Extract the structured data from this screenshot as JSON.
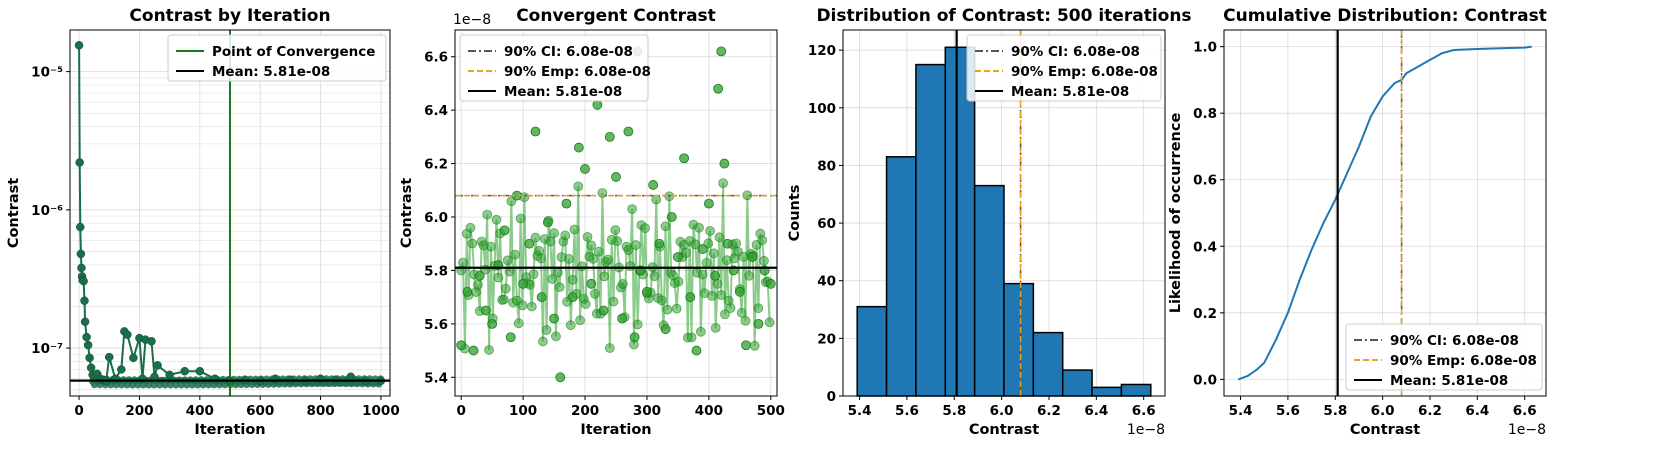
{
  "chart_data": [
    {
      "type": "scatter",
      "title": "Contrast by Iteration",
      "xlabel": "Iteration",
      "ylabel": "Contrast",
      "yscale": "log",
      "xlim": [
        -30,
        1030
      ],
      "ylim": [
        4.5e-08,
        2e-05
      ],
      "xticks": [
        0,
        200,
        400,
        600,
        800,
        1000
      ],
      "xtick_labels": [
        "0",
        "200",
        "400",
        "600",
        "800",
        "1000"
      ],
      "yticks": [
        1e-07,
        1e-06,
        1e-05
      ],
      "ytick_labels": [
        "10⁻⁷",
        "10⁻⁶",
        "10⁻⁵"
      ],
      "series": [
        {
          "name": "Contrast",
          "color": "#1a6e4a",
          "x": [
            0,
            2,
            4,
            6,
            8,
            10,
            12,
            15,
            18,
            20,
            25,
            30,
            35,
            40,
            45,
            50,
            60,
            70,
            80,
            90,
            100,
            120,
            140,
            150,
            160,
            180,
            200,
            210,
            220,
            240,
            250,
            260,
            300,
            350,
            400,
            450,
            500,
            550,
            600,
            650,
            700,
            750,
            800,
            850,
            900,
            950,
            1000
          ],
          "y": [
            1.55e-05,
            2.2e-06,
            7.5e-07,
            4.8e-07,
            3.8e-07,
            3.3e-07,
            3.1e-07,
            3.05e-07,
            2.2e-07,
            1.55e-07,
            1.2e-07,
            1.05e-07,
            8.5e-08,
            7.2e-08,
            6.4e-08,
            6.1e-08,
            6.5e-08,
            6e-08,
            5.9e-08,
            5.8e-08,
            8.6e-08,
            6e-08,
            7e-08,
            1.32e-07,
            1.25e-07,
            8.5e-08,
            1.18e-07,
            6e-08,
            1.15e-07,
            1.12e-07,
            6.2e-08,
            7.5e-08,
            6.4e-08,
            6.8e-08,
            6.8e-08,
            6e-08,
            5.8e-08,
            5.9e-08,
            5.8e-08,
            6e-08,
            5.9e-08,
            5.8e-08,
            6e-08,
            5.9e-08,
            6.2e-08,
            5.8e-08,
            5.8e-08
          ]
        }
      ],
      "legend": [
        {
          "label": "Point of Convergence",
          "color": "#1a7a1a",
          "style": "solid"
        },
        {
          "label": "Mean: 5.81e-08",
          "color": "#000000",
          "style": "solid"
        }
      ],
      "vline": {
        "x": 500,
        "color": "#1a7a1a"
      },
      "hline": {
        "y": 5.81e-08,
        "color": "#000000"
      },
      "legend_loc": "upper right"
    },
    {
      "type": "line",
      "title": "Convergent Contrast",
      "xlabel": "Iteration",
      "ylabel": "Contrast",
      "offset_text": "1e−8",
      "xlim": [
        -10,
        510
      ],
      "ylim": [
        5.33,
        6.7
      ],
      "xticks": [
        0,
        100,
        200,
        300,
        400,
        500
      ],
      "xtick_labels": [
        "0",
        "100",
        "200",
        "300",
        "400",
        "500"
      ],
      "yticks": [
        5.4,
        5.6,
        5.8,
        6.0,
        6.2,
        6.4,
        6.6
      ],
      "ytick_labels": [
        "5.4",
        "5.6",
        "5.8",
        "6.0",
        "6.2",
        "6.4",
        "6.6"
      ],
      "series": [
        {
          "name": "Contrast",
          "color": "#2ca02c",
          "x": [
            0,
            10,
            20,
            30,
            40,
            50,
            60,
            70,
            80,
            90,
            100,
            110,
            120,
            130,
            140,
            150,
            160,
            170,
            180,
            190,
            200,
            210,
            220,
            230,
            240,
            250,
            260,
            270,
            280,
            285,
            290,
            300,
            310,
            320,
            330,
            340,
            350,
            360,
            370,
            380,
            390,
            400,
            410,
            415,
            420,
            425,
            430,
            440,
            450,
            460,
            470,
            480,
            490,
            500
          ],
          "y": [
            5.52,
            5.72,
            5.5,
            5.78,
            5.65,
            5.6,
            5.82,
            5.95,
            5.55,
            6.08,
            5.75,
            5.9,
            6.32,
            5.7,
            5.98,
            5.62,
            5.4,
            6.05,
            5.7,
            6.26,
            6.18,
            5.75,
            6.42,
            5.65,
            6.3,
            6.15,
            5.62,
            6.32,
            5.55,
            6.62,
            5.8,
            5.72,
            6.12,
            5.9,
            5.58,
            6.0,
            5.85,
            6.22,
            5.7,
            5.5,
            5.88,
            6.05,
            5.78,
            6.48,
            6.62,
            6.2,
            5.9,
            5.8,
            5.72,
            5.52,
            5.85,
            5.6,
            5.8,
            5.75
          ]
        }
      ],
      "legend": [
        {
          "label": "90% CI: 6.08e-08",
          "color": "#555555",
          "style": "dashdot"
        },
        {
          "label": "90% Emp: 6.08e-08",
          "color": "#f0a020",
          "style": "dashed"
        },
        {
          "label": "Mean: 5.81e-08",
          "color": "#000000",
          "style": "solid"
        }
      ],
      "hlines": [
        {
          "y": 6.08,
          "color": "#555555",
          "style": "dashdot"
        },
        {
          "y": 6.08,
          "color": "#f0a020",
          "style": "dashed"
        },
        {
          "y": 5.81,
          "color": "#000000",
          "style": "solid"
        }
      ],
      "legend_loc": "upper left"
    },
    {
      "type": "bar",
      "title": "Distribution of Contrast: 500 iterations",
      "xlabel": "Contrast",
      "ylabel": "Counts",
      "offset_text": "1e−8",
      "bin_edges": [
        5.39,
        5.514,
        5.638,
        5.762,
        5.886,
        6.01,
        6.134,
        6.258,
        6.382,
        6.506,
        6.63
      ],
      "values": [
        31,
        83,
        115,
        121,
        73,
        39,
        22,
        9,
        3,
        4
      ],
      "bar_color": "#1f77b4",
      "xlim": [
        5.33,
        6.69
      ],
      "ylim": [
        0,
        127
      ],
      "xticks": [
        5.4,
        5.6,
        5.8,
        6.0,
        6.2,
        6.4,
        6.6
      ],
      "xtick_labels": [
        "5.4",
        "5.6",
        "5.8",
        "6.0",
        "6.2",
        "6.4",
        "6.6"
      ],
      "yticks": [
        0,
        20,
        40,
        60,
        80,
        100,
        120
      ],
      "ytick_labels": [
        "0",
        "20",
        "40",
        "60",
        "80",
        "100",
        "120"
      ],
      "legend": [
        {
          "label": "90% CI: 6.08e-08",
          "color": "#555555",
          "style": "dashdot"
        },
        {
          "label": "90% Emp: 6.08e-08",
          "color": "#f0a020",
          "style": "dashed"
        },
        {
          "label": "Mean: 5.81e-08",
          "color": "#000000",
          "style": "solid"
        }
      ],
      "vlines": [
        {
          "x": 6.08,
          "color": "#555555",
          "style": "dashdot"
        },
        {
          "x": 6.08,
          "color": "#f0a020",
          "style": "dashed"
        },
        {
          "x": 5.81,
          "color": "#000000",
          "style": "solid"
        }
      ],
      "legend_loc": "upper right"
    },
    {
      "type": "line",
      "title": "Cumulative Distribution: Contrast",
      "xlabel": "Contrast",
      "ylabel": "Likelihood of occurrence",
      "offset_text": "1e−8",
      "xlim": [
        5.33,
        6.69
      ],
      "ylim": [
        -0.05,
        1.05
      ],
      "xticks": [
        5.4,
        5.6,
        5.8,
        6.0,
        6.2,
        6.4,
        6.6
      ],
      "xtick_labels": [
        "5.4",
        "5.6",
        "5.8",
        "6.0",
        "6.2",
        "6.4",
        "6.6"
      ],
      "yticks": [
        0.0,
        0.2,
        0.4,
        0.6,
        0.8,
        1.0
      ],
      "ytick_labels": [
        "0.0",
        "0.2",
        "0.4",
        "0.6",
        "0.8",
        "1.0"
      ],
      "series": [
        {
          "name": "CDF",
          "color": "#1f77b4",
          "x": [
            5.39,
            5.43,
            5.47,
            5.5,
            5.55,
            5.6,
            5.65,
            5.7,
            5.75,
            5.8,
            5.85,
            5.9,
            5.95,
            6.0,
            6.05,
            6.08,
            6.1,
            6.15,
            6.2,
            6.25,
            6.3,
            6.4,
            6.5,
            6.6,
            6.63
          ],
          "y": [
            0.0,
            0.01,
            0.03,
            0.05,
            0.12,
            0.2,
            0.3,
            0.39,
            0.47,
            0.54,
            0.62,
            0.7,
            0.79,
            0.85,
            0.89,
            0.9,
            0.92,
            0.94,
            0.96,
            0.98,
            0.99,
            0.993,
            0.995,
            0.997,
            1.0
          ]
        }
      ],
      "legend": [
        {
          "label": "90% CI: 6.08e-08",
          "color": "#555555",
          "style": "dashdot"
        },
        {
          "label": "90% Emp: 6.08e-08",
          "color": "#f0a020",
          "style": "dashed"
        },
        {
          "label": "Mean: 5.81e-08",
          "color": "#000000",
          "style": "solid"
        }
      ],
      "vlines": [
        {
          "x": 6.08,
          "color": "#555555",
          "style": "dashdot"
        },
        {
          "x": 6.08,
          "color": "#f0a020",
          "style": "dashed"
        },
        {
          "x": 5.81,
          "color": "#000000",
          "style": "solid"
        }
      ],
      "legend_loc": "lower right"
    }
  ]
}
